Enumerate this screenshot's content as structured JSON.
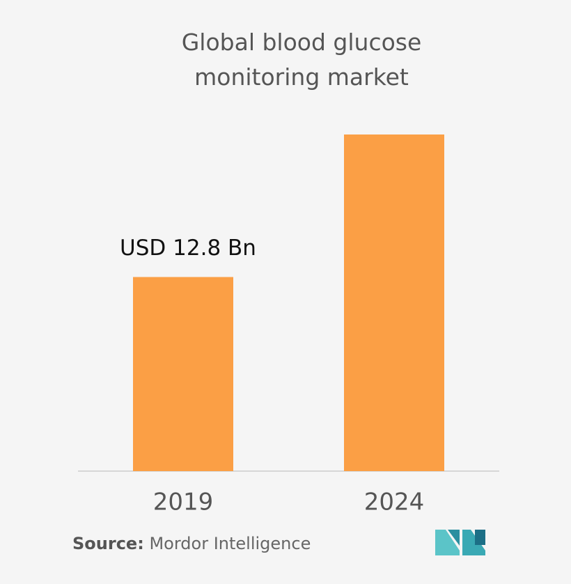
{
  "chart_data": {
    "type": "bar",
    "title": "Global blood glucose monitoring market",
    "categories": [
      "2019",
      "2024"
    ],
    "values": [
      12.8,
      22.2
    ],
    "value_labels": [
      "USD 12.8 Bn",
      null
    ],
    "color": "#fb9f45",
    "source": {
      "label": "Source:",
      "text": "Mordor Intelligence"
    }
  }
}
